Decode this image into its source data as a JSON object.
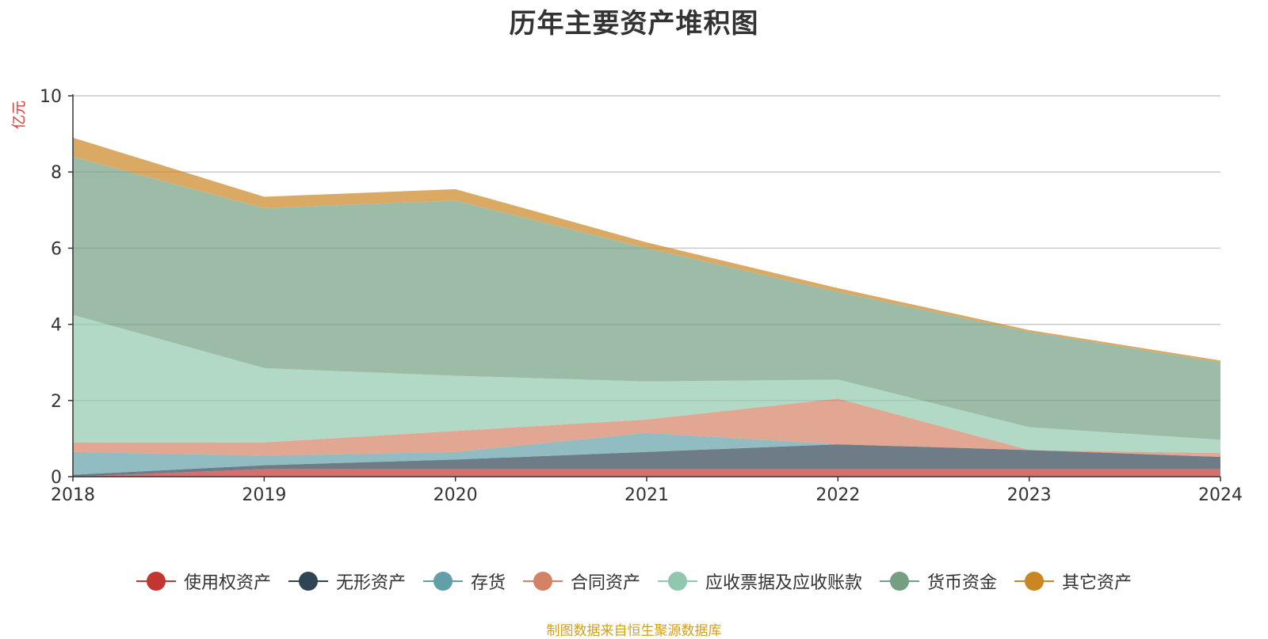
{
  "chart_data": {
    "type": "area",
    "stacked": true,
    "title": "历年主要资产堆积图",
    "ylabel": "亿元",
    "ylim": [
      0,
      10
    ],
    "yticks": [
      0,
      2,
      4,
      6,
      8,
      10
    ],
    "categories": [
      "2018",
      "2019",
      "2020",
      "2021",
      "2022",
      "2023",
      "2024"
    ],
    "grid": true,
    "legend_position": "bottom",
    "series": [
      {
        "name": "使用权资产",
        "color": "#c23531",
        "values": [
          0,
          0.2,
          0.2,
          0.2,
          0.2,
          0.2,
          0.2
        ]
      },
      {
        "name": "无形资产",
        "color": "#2f4554",
        "values": [
          0.05,
          0.1,
          0.25,
          0.45,
          0.65,
          0.5,
          0.32
        ]
      },
      {
        "name": "存货",
        "color": "#61a0a8",
        "values": [
          0.6,
          0.25,
          0.2,
          0.5,
          0.0,
          0.0,
          0.0
        ]
      },
      {
        "name": "合同资产",
        "color": "#d48265",
        "values": [
          0.25,
          0.35,
          0.55,
          0.35,
          1.2,
          0.0,
          0.1
        ]
      },
      {
        "name": "应收票据及应收账款",
        "color": "#91c7ae",
        "values": [
          3.35,
          1.95,
          1.45,
          1.0,
          0.5,
          0.6,
          0.35
        ]
      },
      {
        "name": "货币资金",
        "color": "#749f83",
        "values": [
          4.15,
          4.2,
          4.6,
          3.5,
          2.3,
          2.5,
          2.03
        ]
      },
      {
        "name": "其它资产",
        "color": "#ca8622",
        "values": [
          0.5,
          0.3,
          0.3,
          0.15,
          0.1,
          0.05,
          0.05
        ]
      }
    ],
    "source": "制图数据来自恒生聚源数据库"
  }
}
